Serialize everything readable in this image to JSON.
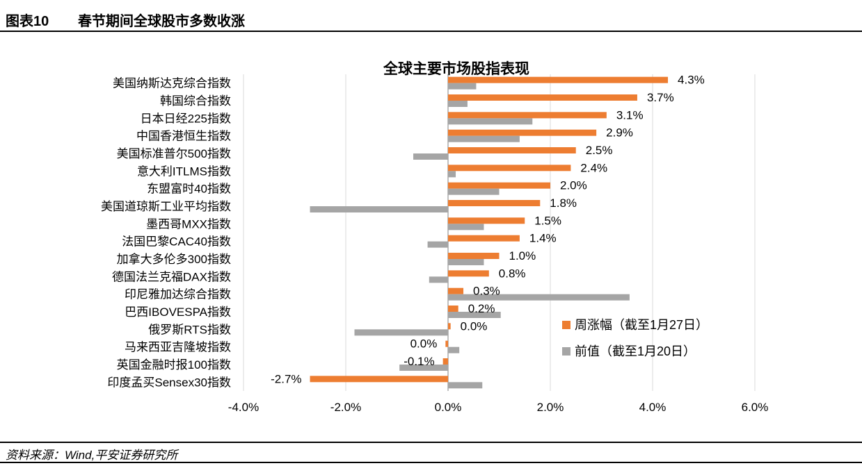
{
  "header": {
    "figure_no": "图表10",
    "title": "春节期间全球股市多数收涨"
  },
  "source": "资料来源：Wind,平安证券研究所",
  "colors": {
    "current": "#ED7D31",
    "previous": "#A5A5A5",
    "grid": "#D9D9D9"
  },
  "chart_data": {
    "type": "bar",
    "orientation": "horizontal",
    "title": "全球主要市场股指表现",
    "categories": [
      "美国纳斯达克综合指数",
      "韩国综合指数",
      "日本日经225指数",
      "中国香港恒生指数",
      "美国标准普尔500指数",
      "意大利ITLMS指数",
      "东盟富时40指数",
      "美国道琼斯工业平均指数",
      "墨西哥MXX指数",
      "法国巴黎CAC40指数",
      "加拿大多伦多300指数",
      "德国法兰克福DAX指数",
      "印尼雅加达综合指数",
      "巴西IBOVESPA指数",
      "俄罗斯RTS指数",
      "马来西亚吉隆坡指数",
      "英国金融时报100指数",
      "印度孟买Sensex30指数"
    ],
    "series": [
      {
        "name": "周涨幅（截至1月27日）",
        "values": [
          4.3,
          3.7,
          3.1,
          2.9,
          2.5,
          2.4,
          2.0,
          1.8,
          1.5,
          1.4,
          1.0,
          0.8,
          0.3,
          0.2,
          0.05,
          -0.05,
          -0.1,
          -2.7
        ],
        "labels": [
          "4.3%",
          "3.7%",
          "3.1%",
          "2.9%",
          "2.5%",
          "2.4%",
          "2.0%",
          "1.8%",
          "1.5%",
          "1.4%",
          "1.0%",
          "0.8%",
          "0.3%",
          "0.2%",
          "0.0%",
          "0.0%",
          "-0.1%",
          "-2.7%"
        ]
      },
      {
        "name": "前值（截至1月20日）",
        "values": [
          0.55,
          0.38,
          1.65,
          1.4,
          -0.68,
          0.15,
          1.0,
          -2.7,
          0.7,
          -0.4,
          0.7,
          -0.37,
          3.55,
          1.03,
          -1.83,
          0.22,
          -0.95,
          0.67
        ]
      }
    ],
    "x_axis": {
      "min": -4,
      "max": 6,
      "ticks": [
        -4,
        -2,
        0,
        2,
        4,
        6
      ],
      "tick_labels": [
        "-4.0%",
        "-2.0%",
        "0.0%",
        "2.0%",
        "4.0%",
        "6.0%"
      ]
    },
    "grid": true,
    "legend_position": "lower-right"
  }
}
